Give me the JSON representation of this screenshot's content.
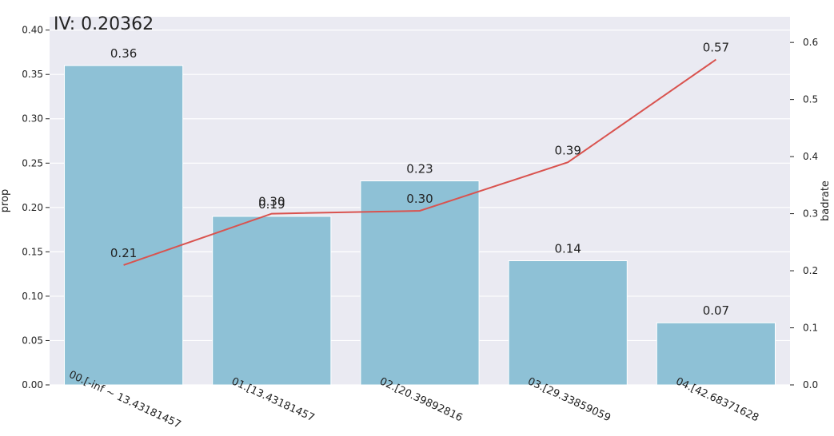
{
  "chart_data": {
    "type": "bar",
    "title": "IV: 0.20362",
    "categories": [
      "00.[-inf ~ 13.43181457",
      "01.[13.43181457",
      "02.[20.39892816",
      "03.[29.33859059",
      "04.[42.68371628"
    ],
    "series": [
      {
        "name": "prop",
        "axis": "left",
        "type": "bar",
        "values": [
          0.36,
          0.19,
          0.23,
          0.14,
          0.07
        ],
        "labels": [
          "0.36",
          "0.19",
          "0.23",
          "0.14",
          "0.07"
        ]
      },
      {
        "name": "badrate",
        "axis": "right",
        "type": "line",
        "values": [
          0.21,
          0.3,
          0.305,
          0.39,
          0.57
        ],
        "labels": [
          "0.21",
          "0.30",
          "0.30",
          "0.39",
          "0.57"
        ]
      }
    ],
    "ylabel": "prop",
    "y2label": "badrate",
    "ylim": [
      0,
      0.415
    ],
    "y2lim": [
      0,
      0.645
    ],
    "yticks": [
      0.0,
      0.05,
      0.1,
      0.15,
      0.2,
      0.25,
      0.3,
      0.35,
      0.4
    ],
    "yticklabels": [
      "0.00",
      "0.05",
      "0.10",
      "0.15",
      "0.20",
      "0.25",
      "0.30",
      "0.35",
      "0.40"
    ],
    "y2ticks": [
      0.0,
      0.1,
      0.2,
      0.3,
      0.4,
      0.5,
      0.6
    ],
    "y2ticklabels": [
      "0.0",
      "0.1",
      "0.2",
      "0.3",
      "0.4",
      "0.5",
      "0.6"
    ],
    "grid": true,
    "colors": {
      "bar": "#8ec1d6",
      "line": "#d9534f",
      "background": "#eaeaf2",
      "grid": "#ffffff"
    }
  }
}
